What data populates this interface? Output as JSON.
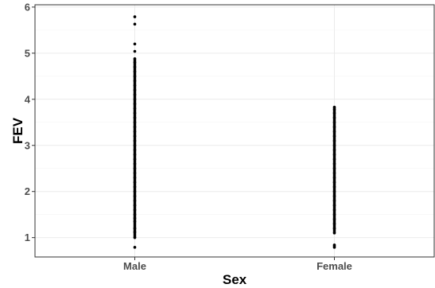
{
  "chart_data": {
    "type": "scatter",
    "title": "",
    "xlabel": "Sex",
    "ylabel": "FEV",
    "categories": [
      "Male",
      "Female"
    ],
    "ylim": [
      0.58,
      6.05
    ],
    "yticks": [
      1,
      2,
      3,
      4,
      5,
      6
    ],
    "ytick_labels": [
      "1",
      "2",
      "3",
      "4",
      "5",
      "6"
    ],
    "grid": true,
    "legend": "none",
    "point_color": "#000000",
    "series": [
      {
        "category": "Male",
        "values": [
          0.79,
          1.0,
          1.12,
          1.2,
          1.35,
          1.42,
          1.5,
          1.6,
          1.7,
          1.8,
          1.9,
          2.0,
          2.1,
          2.2,
          2.3,
          2.4,
          2.5,
          2.6,
          2.7,
          2.8,
          2.9,
          3.0,
          3.1,
          3.2,
          3.3,
          3.4,
          3.5,
          3.6,
          3.7,
          3.8,
          3.9,
          4.0,
          4.1,
          4.2,
          4.3,
          4.4,
          4.5,
          4.6,
          4.7,
          4.8,
          4.88,
          5.04,
          5.2,
          5.63,
          5.79
        ]
      },
      {
        "category": "Female",
        "values": [
          0.79,
          0.84,
          1.1,
          1.2,
          1.3,
          1.4,
          1.5,
          1.6,
          1.7,
          1.8,
          1.9,
          2.0,
          2.1,
          2.2,
          2.3,
          2.4,
          2.5,
          2.6,
          2.7,
          2.8,
          2.9,
          3.0,
          3.1,
          3.2,
          3.3,
          3.4,
          3.5,
          3.6,
          3.7,
          3.78,
          3.83
        ]
      }
    ]
  }
}
